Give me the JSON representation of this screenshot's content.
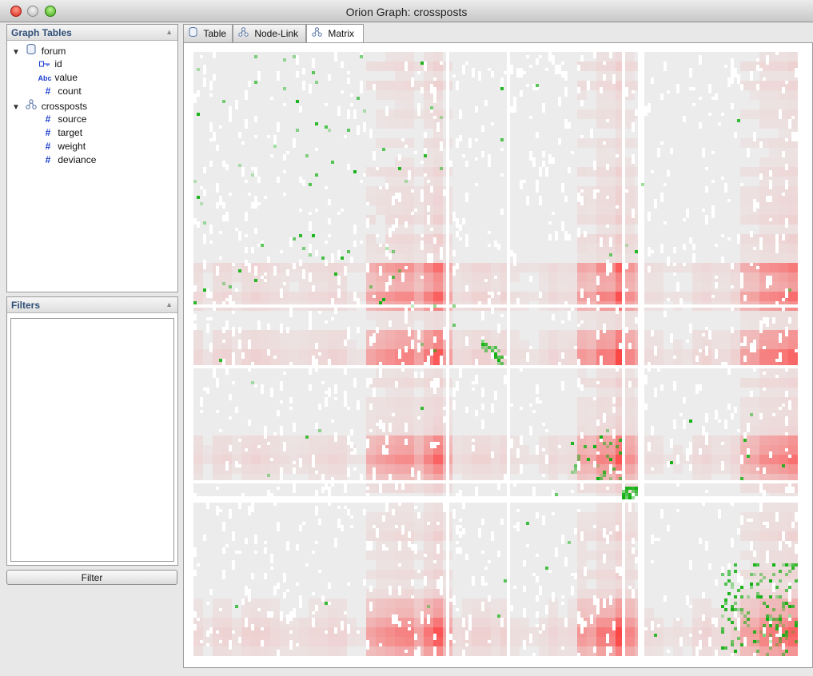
{
  "window": {
    "title": "Orion Graph: crossposts"
  },
  "graph_tables": {
    "title": "Graph Tables",
    "tables": [
      {
        "name": "forum",
        "icon": "table-icon",
        "columns": [
          {
            "name": "id",
            "type": "key",
            "icon": "key-icon"
          },
          {
            "name": "value",
            "type": "string",
            "icon_text": "Abc"
          },
          {
            "name": "count",
            "type": "number",
            "icon_text": "#"
          }
        ]
      },
      {
        "name": "crossposts",
        "icon": "graph-icon",
        "columns": [
          {
            "name": "source",
            "type": "number",
            "icon_text": "#"
          },
          {
            "name": "target",
            "type": "number",
            "icon_text": "#"
          },
          {
            "name": "weight",
            "type": "number",
            "icon_text": "#"
          },
          {
            "name": "deviance",
            "type": "number",
            "icon_text": "#"
          }
        ]
      }
    ]
  },
  "filters": {
    "title": "Filters",
    "button_label": "Filter"
  },
  "tabs": [
    {
      "label": "Table",
      "icon": "table-icon"
    },
    {
      "label": "Node-Link",
      "icon": "graph-icon"
    },
    {
      "label": "Matrix",
      "icon": "graph-icon",
      "active": true
    }
  ],
  "matrix": {
    "view": "adjacency-matrix",
    "colors": {
      "background": "#ffffff",
      "empty": "#ececec",
      "negative": "#ff2a2a",
      "positive": "#10b010",
      "gap": "#ffffff"
    }
  }
}
